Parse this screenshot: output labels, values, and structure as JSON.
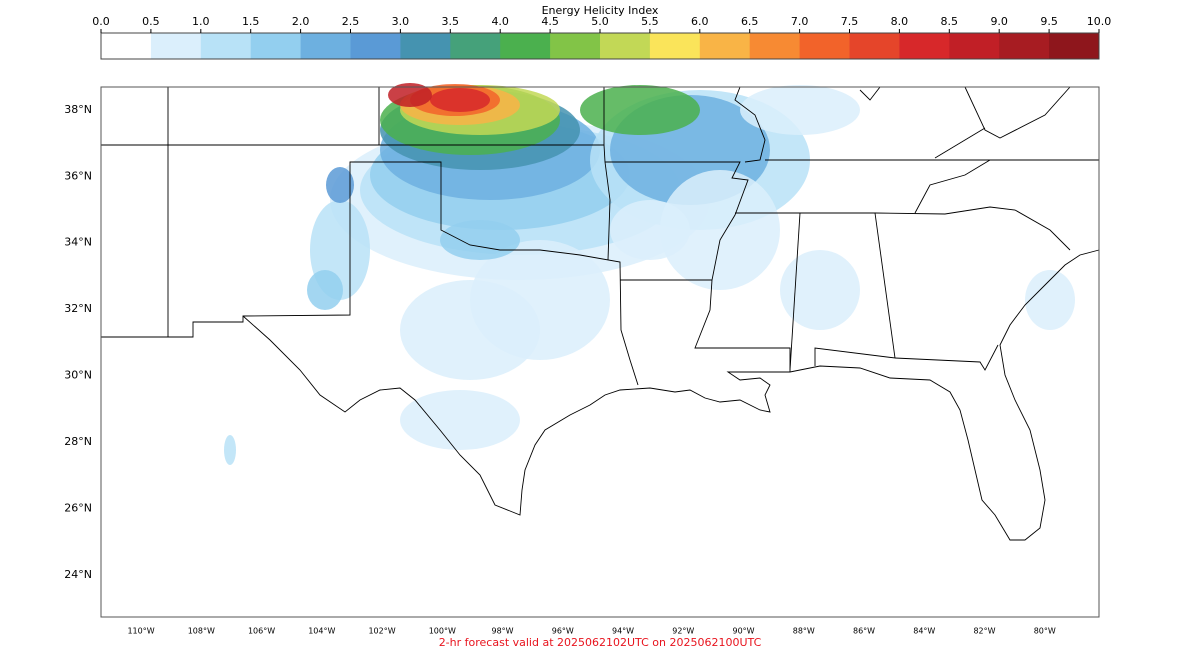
{
  "colorbar": {
    "title": "Energy Helicity Index",
    "range": [
      0,
      10
    ],
    "ticks": [
      {
        "value": 0,
        "label": "0.0"
      },
      {
        "value": 0.5,
        "label": "0.5"
      },
      {
        "value": 1,
        "label": "1.0"
      },
      {
        "value": 1.5,
        "label": "1.5"
      },
      {
        "value": 2,
        "label": "2.0"
      },
      {
        "value": 2.5,
        "label": "2.5"
      },
      {
        "value": 3,
        "label": "3.0"
      },
      {
        "value": 3.5,
        "label": "3.5"
      },
      {
        "value": 4,
        "label": "4.0"
      },
      {
        "value": 4.5,
        "label": "4.5"
      },
      {
        "value": 5,
        "label": "5.0"
      },
      {
        "value": 5.5,
        "label": "5.5"
      },
      {
        "value": 6,
        "label": "6.0"
      },
      {
        "value": 6.5,
        "label": "6.5"
      },
      {
        "value": 7,
        "label": "7.0"
      },
      {
        "value": 7.5,
        "label": "7.5"
      },
      {
        "value": 8,
        "label": "8.0"
      },
      {
        "value": 8.5,
        "label": "8.5"
      },
      {
        "value": 9,
        "label": "9.0"
      },
      {
        "value": 9.5,
        "label": "9.5"
      },
      {
        "value": 10,
        "label": "10.0"
      }
    ],
    "colors": [
      "#ffffff",
      "#dbeffc",
      "#b8e2f7",
      "#93cfef",
      "#6db0e0",
      "#5a9ad6",
      "#4593b0",
      "#45a17a",
      "#4bb04e",
      "#82c447",
      "#c2d856",
      "#fae45a",
      "#f9b446",
      "#f78a33",
      "#f2632a",
      "#e5452a",
      "#d7282a",
      "#c11f26",
      "#a71c22",
      "#8e161c"
    ]
  },
  "map": {
    "xlim": [
      -111.33,
      -78.2
    ],
    "ylim": [
      22.73,
      38.69
    ],
    "lat_ticks": [
      {
        "value": 38,
        "label": "38°N"
      },
      {
        "value": 36,
        "label": "36°N"
      },
      {
        "value": 34,
        "label": "34°N"
      },
      {
        "value": 32,
        "label": "32°N"
      },
      {
        "value": 30,
        "label": "30°N"
      },
      {
        "value": 28,
        "label": "28°N"
      },
      {
        "value": 26,
        "label": "26°N"
      },
      {
        "value": 24,
        "label": "24°N"
      }
    ],
    "lon_ticks": [
      {
        "value": -110,
        "label": "110°W"
      },
      {
        "value": -108,
        "label": "108°W"
      },
      {
        "value": -106,
        "label": "106°W"
      },
      {
        "value": -104,
        "label": "104°W"
      },
      {
        "value": -102,
        "label": "102°W"
      },
      {
        "value": -100,
        "label": "100°W"
      },
      {
        "value": -98,
        "label": "98°W"
      },
      {
        "value": -96,
        "label": "96°W"
      },
      {
        "value": -94,
        "label": "94°W"
      },
      {
        "value": -92,
        "label": "92°W"
      },
      {
        "value": -90,
        "label": "90°W"
      },
      {
        "value": -88,
        "label": "88°W"
      },
      {
        "value": -86,
        "label": "86°W"
      },
      {
        "value": -84,
        "label": "84°W"
      },
      {
        "value": -82,
        "label": "82°W"
      },
      {
        "value": -80,
        "label": "80°W"
      }
    ]
  },
  "footer": "2-hr forecast valid at 2025062102UTC on 2025062100UTC"
}
